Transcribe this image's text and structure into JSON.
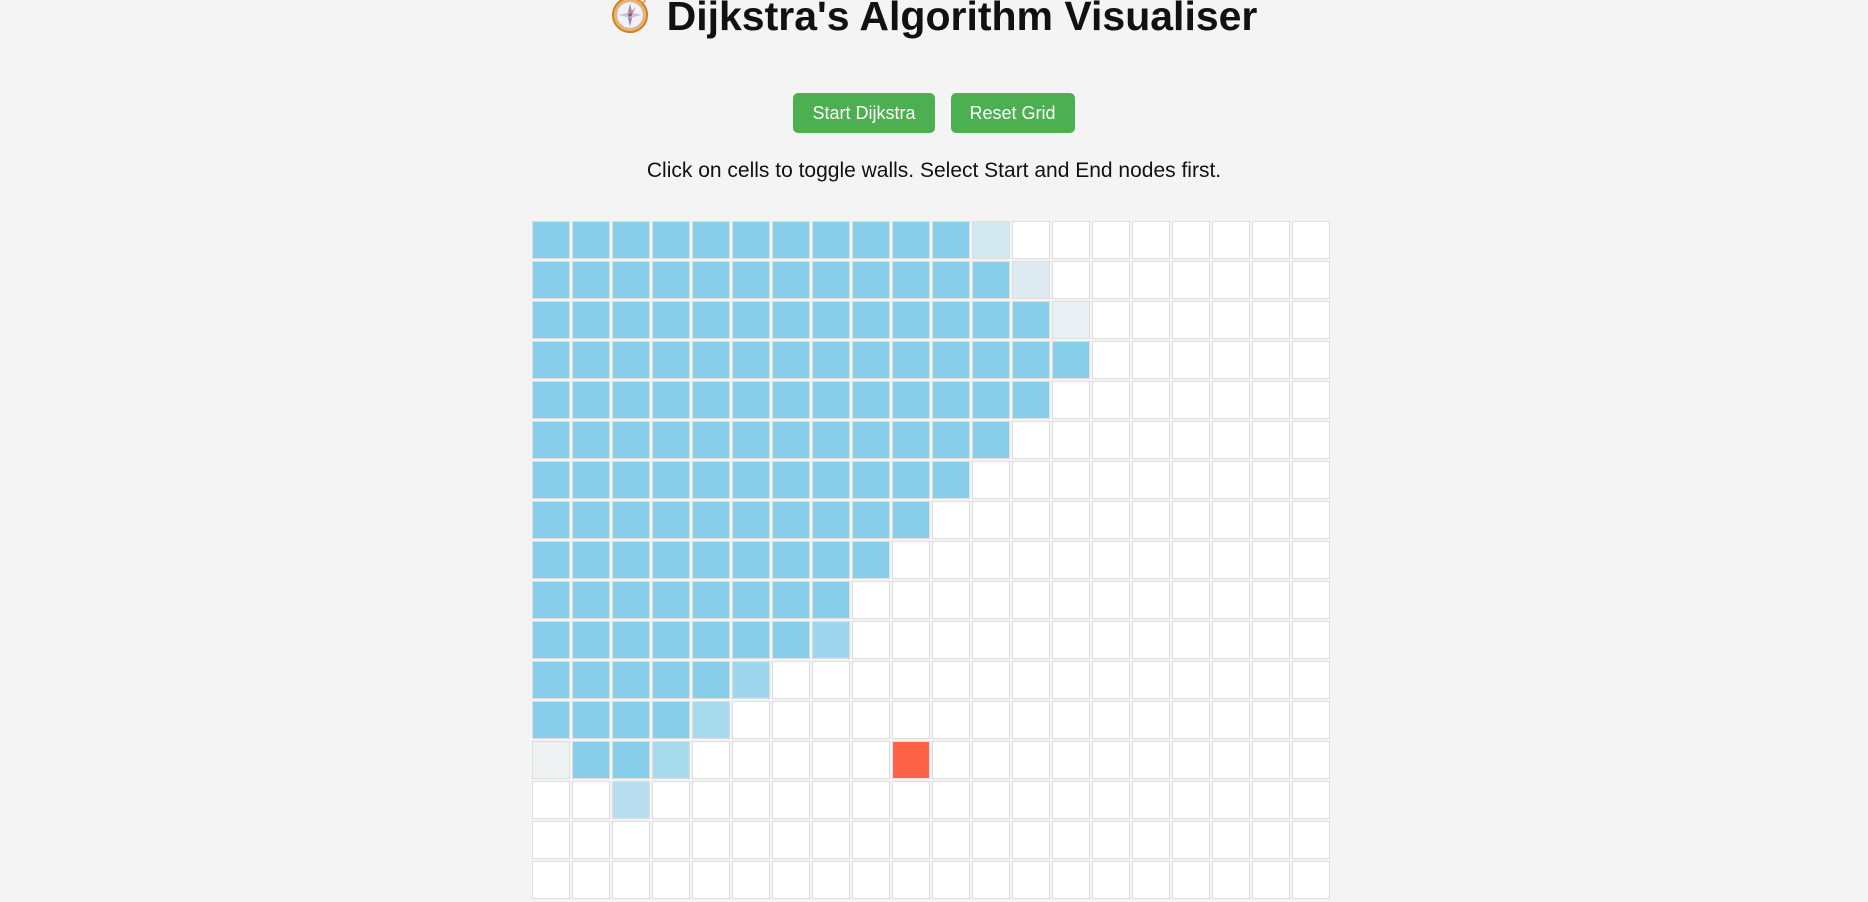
{
  "header": {
    "icon": "compass-icon",
    "title": "Dijkstra's Algorithm Visualiser"
  },
  "controls": {
    "start_label": "Start Dijkstra",
    "reset_label": "Reset Grid"
  },
  "instructions": "Click on cells to toggle walls. Select Start and End nodes first.",
  "colors": {
    "button": "#4caf50",
    "visited": "#87ceeb",
    "end_node": "#ff6347",
    "empty": "#ffffff",
    "page_background": "#f4f4f4"
  },
  "grid": {
    "columns": 20,
    "visible_rows": 17,
    "cells": [
      "VVVVVVVVVVVl........",
      "VVVVVVVVVVVVm.......",
      "VVVVVVVVVVVVVn......",
      "VVVVVVVVVVVVVV......",
      "VVVVVVVVVVVVV.......",
      "VVVVVVVVVVVV........",
      "VVVVVVVVVVV.........",
      "VVVVVVVVVV..........",
      "VVVVVVVVV...........",
      "VVVVVVVV............",
      "VVVVVVVh............",
      "VVVVVh..............",
      "VVVVg...............",
      "xVVg.....E..........",
      "..f.................",
      "....................",
      "...................."
    ],
    "legend": {
      "V": "visited",
      "g": "visiting-0.70",
      "h": "visiting-0.80",
      "f": "visiting-0.55",
      "l": "visiting-0.30",
      "m": "visiting-0.20",
      "n": "visiting-0.10",
      "x": "visiting-0.05",
      "E": "end",
      ".": "empty"
    }
  }
}
